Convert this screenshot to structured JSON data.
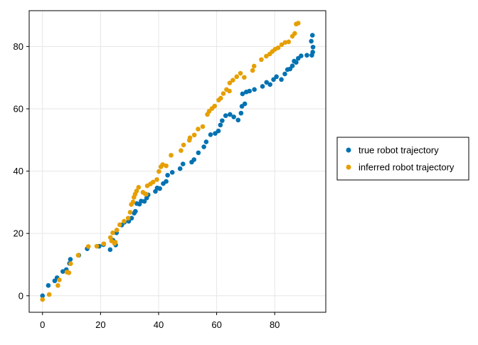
{
  "chart_data": {
    "type": "scatter",
    "title": "",
    "xlabel": "",
    "ylabel": "",
    "xlim": [
      -4.6,
      97.6
    ],
    "ylim": [
      -5.3,
      91.5
    ],
    "xticks": [
      0,
      20,
      40,
      60,
      80
    ],
    "yticks": [
      0,
      20,
      40,
      60,
      80
    ],
    "grid": true,
    "legend_position": "right",
    "series": [
      {
        "name": "true robot trajectory",
        "color": "#0072B2",
        "points": [
          [
            0,
            0
          ],
          [
            2,
            3.3
          ],
          [
            4.2,
            4.8
          ],
          [
            5,
            5.8
          ],
          [
            7,
            7.8
          ],
          [
            8.2,
            8.4
          ],
          [
            9.3,
            10.4
          ],
          [
            9.6,
            11.7
          ],
          [
            12.5,
            13
          ],
          [
            15.4,
            15.1
          ],
          [
            19.5,
            15.9
          ],
          [
            21,
            16.4
          ],
          [
            23.3,
            14.8
          ],
          [
            24.3,
            17.8
          ],
          [
            25.2,
            16.3
          ],
          [
            25.5,
            20.2
          ],
          [
            27.3,
            22.7
          ],
          [
            28.2,
            23.6
          ],
          [
            29.7,
            23.9
          ],
          [
            30.7,
            24.9
          ],
          [
            31.6,
            26.5
          ],
          [
            32,
            27.1
          ],
          [
            32.5,
            29.6
          ],
          [
            33.4,
            29.4
          ],
          [
            34,
            30.4
          ],
          [
            35.1,
            30.3
          ],
          [
            35.9,
            31.4
          ],
          [
            36.4,
            32.4
          ],
          [
            38.9,
            33.5
          ],
          [
            39.5,
            34.6
          ],
          [
            40.4,
            34.4
          ],
          [
            41.6,
            36
          ],
          [
            42.6,
            36.7
          ],
          [
            43.1,
            38.7
          ],
          [
            44.7,
            39.6
          ],
          [
            47.4,
            40.8
          ],
          [
            48.4,
            42.3
          ],
          [
            51.4,
            42.9
          ],
          [
            52.2,
            43.7
          ],
          [
            53.7,
            45.9
          ],
          [
            55.6,
            47.8
          ],
          [
            56.4,
            49.4
          ],
          [
            57.9,
            51.7
          ],
          [
            59.5,
            52.1
          ],
          [
            60.6,
            52.9
          ],
          [
            61.3,
            54.8
          ],
          [
            61.9,
            56.2
          ],
          [
            63.1,
            57.8
          ],
          [
            64.6,
            58.2
          ],
          [
            65.9,
            57.4
          ],
          [
            67.4,
            56.4
          ],
          [
            68.4,
            58.6
          ],
          [
            68.7,
            60.8
          ],
          [
            69.7,
            61.6
          ],
          [
            68.9,
            64.8
          ],
          [
            70.2,
            65.4
          ],
          [
            71.3,
            65.7
          ],
          [
            73,
            66.2
          ],
          [
            75.8,
            67.2
          ],
          [
            77.2,
            68.5
          ],
          [
            78.4,
            67.8
          ],
          [
            79.6,
            69.4
          ],
          [
            80.6,
            70.3
          ],
          [
            82.3,
            69.4
          ],
          [
            83.5,
            71.2
          ],
          [
            84.4,
            72.6
          ],
          [
            85.3,
            72.8
          ],
          [
            86.1,
            73.8
          ],
          [
            86.7,
            75.3
          ],
          [
            87.4,
            74.9
          ],
          [
            88.1,
            76.2
          ],
          [
            89.1,
            77
          ],
          [
            91.1,
            77.2
          ],
          [
            92.6,
            81.7
          ],
          [
            93.2,
            79.8
          ],
          [
            92.8,
            77.2
          ],
          [
            93.1,
            78.2
          ],
          [
            93,
            83.6
          ]
        ]
      },
      {
        "name": "inferred robot trajectory",
        "color": "#E69F00",
        "points": [
          [
            0,
            -1.2
          ],
          [
            2.3,
            0.4
          ],
          [
            5.3,
            3.3
          ],
          [
            5.8,
            5.1
          ],
          [
            8.4,
            7.6
          ],
          [
            9.1,
            7.4
          ],
          [
            9.7,
            10.3
          ],
          [
            12.3,
            13
          ],
          [
            15.8,
            15.8
          ],
          [
            18.7,
            15.9
          ],
          [
            21.1,
            16.7
          ],
          [
            23.4,
            18.7
          ],
          [
            23.8,
            17.6
          ],
          [
            24.2,
            20.2
          ],
          [
            24.8,
            16.8
          ],
          [
            25.1,
            17.2
          ],
          [
            25.6,
            21.1
          ],
          [
            26.6,
            22.8
          ],
          [
            28.1,
            23.9
          ],
          [
            29.5,
            24.9
          ],
          [
            30.2,
            26.8
          ],
          [
            30.6,
            29.3
          ],
          [
            31.2,
            30.1
          ],
          [
            31.5,
            31.6
          ],
          [
            31.9,
            32.6
          ],
          [
            32.4,
            33.6
          ],
          [
            33.1,
            34.8
          ],
          [
            34.6,
            33.2
          ],
          [
            35.4,
            32.7
          ],
          [
            35.7,
            32.6
          ],
          [
            36.1,
            35.3
          ],
          [
            37.2,
            35.9
          ],
          [
            38.1,
            36.5
          ],
          [
            39.4,
            37.3
          ],
          [
            40.1,
            39.9
          ],
          [
            40.8,
            41.4
          ],
          [
            41.4,
            42.1
          ],
          [
            42.6,
            41.7
          ],
          [
            44.3,
            45.1
          ],
          [
            47.7,
            46.6
          ],
          [
            48.6,
            48.4
          ],
          [
            50.8,
            50.7
          ],
          [
            50.6,
            49.9
          ],
          [
            52.3,
            51.6
          ],
          [
            53.6,
            53.5
          ],
          [
            55.2,
            54.3
          ],
          [
            56.8,
            58.2
          ],
          [
            57.4,
            59.2
          ],
          [
            58.4,
            60.1
          ],
          [
            59.3,
            60.9
          ],
          [
            60.7,
            62.8
          ],
          [
            61.4,
            63.4
          ],
          [
            62.3,
            64.9
          ],
          [
            63.4,
            66.2
          ],
          [
            64.5,
            68.3
          ],
          [
            64.4,
            65.7
          ],
          [
            65.6,
            69.2
          ],
          [
            66.9,
            70.3
          ],
          [
            68.2,
            71.4
          ],
          [
            69.5,
            70.1
          ],
          [
            72.4,
            72.3
          ],
          [
            72.9,
            73.7
          ],
          [
            75.4,
            75.8
          ],
          [
            77.1,
            76.9
          ],
          [
            78.3,
            77.6
          ],
          [
            79.2,
            78.4
          ],
          [
            80.1,
            79.1
          ],
          [
            81.2,
            79.6
          ],
          [
            82.4,
            80.6
          ],
          [
            83.6,
            81.3
          ],
          [
            84.8,
            81.5
          ],
          [
            86.1,
            83.3
          ],
          [
            86.9,
            84.2
          ],
          [
            87.4,
            87.2
          ],
          [
            88.1,
            87.5
          ]
        ]
      }
    ]
  }
}
